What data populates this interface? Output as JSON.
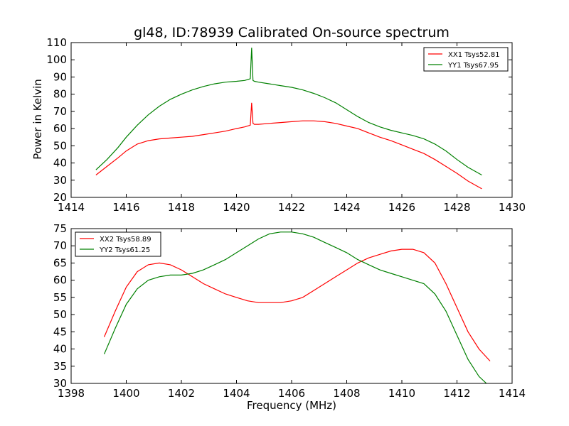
{
  "figure": {
    "title": "gl48, ID:78939 Calibrated On-source spectrum",
    "xlabel": "Frequency (MHz)",
    "ylabel": "Power in Kelvin"
  },
  "chart_data": [
    {
      "type": "line",
      "title": "gl48, ID:78939 Calibrated On-source spectrum",
      "xlabel": "",
      "ylabel": "Power in Kelvin",
      "xlim": [
        1414,
        1430
      ],
      "ylim": [
        20,
        110
      ],
      "xticks": [
        "1414",
        "1416",
        "1418",
        "1420",
        "1422",
        "1424",
        "1426",
        "1428",
        "1430"
      ],
      "yticks": [
        "20",
        "30",
        "40",
        "50",
        "60",
        "70",
        "80",
        "90",
        "100",
        "110"
      ],
      "legend": "top-right",
      "grid": false,
      "series": [
        {
          "name": "XX1 Tsys52.81",
          "color": "#ff0000",
          "x": [
            1414.9,
            1415.3,
            1415.7,
            1416.0,
            1416.4,
            1416.8,
            1417.2,
            1417.6,
            1418.0,
            1418.4,
            1418.8,
            1419.2,
            1419.6,
            1420.0,
            1420.3,
            1420.5,
            1420.55,
            1420.6,
            1420.65,
            1420.8,
            1421.2,
            1421.6,
            1422.0,
            1422.4,
            1422.8,
            1423.2,
            1423.6,
            1424.0,
            1424.4,
            1424.8,
            1425.2,
            1425.6,
            1426.0,
            1426.4,
            1426.8,
            1427.2,
            1427.6,
            1428.0,
            1428.4,
            1428.9
          ],
          "y": [
            33,
            38,
            43,
            47,
            51,
            53,
            54,
            54.5,
            55,
            55.5,
            56.5,
            57.5,
            58.5,
            60,
            61,
            62,
            75,
            63,
            62.5,
            62.5,
            63,
            63.5,
            64,
            64.5,
            64.5,
            64,
            63,
            61.5,
            60,
            57.5,
            55,
            53,
            50.5,
            48,
            45.5,
            42,
            38,
            34,
            29.5,
            25
          ]
        },
        {
          "name": "YY1 Tsys67.95",
          "color": "#008000",
          "x": [
            1414.9,
            1415.3,
            1415.7,
            1416.0,
            1416.4,
            1416.8,
            1417.2,
            1417.6,
            1418.0,
            1418.4,
            1418.8,
            1419.2,
            1419.6,
            1420.0,
            1420.3,
            1420.5,
            1420.55,
            1420.6,
            1420.65,
            1420.8,
            1421.2,
            1421.6,
            1422.0,
            1422.4,
            1422.8,
            1423.2,
            1423.6,
            1424.0,
            1424.4,
            1424.8,
            1425.2,
            1425.6,
            1426.0,
            1426.4,
            1426.8,
            1427.2,
            1427.6,
            1428.0,
            1428.4,
            1428.9
          ],
          "y": [
            36,
            42,
            49,
            55,
            62,
            68,
            73,
            77,
            80,
            82.5,
            84.5,
            86,
            87,
            87.5,
            88,
            89,
            107,
            88,
            87.5,
            87,
            86,
            85,
            84,
            82.5,
            80.5,
            78,
            75,
            71,
            67,
            63.5,
            61,
            59,
            57.5,
            56,
            54,
            51,
            47,
            42,
            37.5,
            33
          ]
        }
      ]
    },
    {
      "type": "line",
      "title": "",
      "xlabel": "Frequency (MHz)",
      "ylabel": "",
      "xlim": [
        1398,
        1414
      ],
      "ylim": [
        30,
        75
      ],
      "xticks": [
        "1398",
        "1400",
        "1402",
        "1404",
        "1406",
        "1408",
        "1410",
        "1412",
        "1414"
      ],
      "yticks": [
        "30",
        "35",
        "40",
        "45",
        "50",
        "55",
        "60",
        "65",
        "70",
        "75"
      ],
      "legend": "top-left",
      "grid": false,
      "series": [
        {
          "name": "XX2 Tsys58.89",
          "color": "#ff0000",
          "x": [
            1399.2,
            1399.6,
            1400.0,
            1400.4,
            1400.8,
            1401.2,
            1401.6,
            1402.0,
            1402.4,
            1402.8,
            1403.2,
            1403.6,
            1404.0,
            1404.4,
            1404.8,
            1405.2,
            1405.6,
            1406.0,
            1406.4,
            1406.8,
            1407.2,
            1407.6,
            1408.0,
            1408.4,
            1408.8,
            1409.2,
            1409.6,
            1410.0,
            1410.4,
            1410.8,
            1411.2,
            1411.6,
            1412.0,
            1412.4,
            1412.8,
            1413.2
          ],
          "y": [
            43.5,
            51,
            58,
            62.5,
            64.5,
            65,
            64.5,
            63,
            61,
            59,
            57.5,
            56,
            55,
            54,
            53.5,
            53.5,
            53.5,
            54,
            55,
            57,
            59,
            61,
            63,
            65,
            66.5,
            67.5,
            68.5,
            69,
            69,
            68,
            65,
            59,
            52,
            45,
            40,
            36.5
          ]
        },
        {
          "name": "YY2 Tsys61.25",
          "color": "#008000",
          "x": [
            1399.2,
            1399.6,
            1400.0,
            1400.4,
            1400.8,
            1401.2,
            1401.6,
            1402.0,
            1402.4,
            1402.8,
            1403.2,
            1403.6,
            1404.0,
            1404.4,
            1404.8,
            1405.2,
            1405.6,
            1406.0,
            1406.4,
            1406.8,
            1407.2,
            1407.6,
            1408.0,
            1408.4,
            1408.8,
            1409.2,
            1409.6,
            1410.0,
            1410.4,
            1410.8,
            1411.2,
            1411.6,
            1412.0,
            1412.4,
            1412.8,
            1413.2
          ],
          "y": [
            38.5,
            46,
            53,
            57.5,
            60,
            61,
            61.5,
            61.5,
            62,
            63,
            64.5,
            66,
            68,
            70,
            72,
            73.5,
            74,
            74,
            73.5,
            72.5,
            71,
            69.5,
            68,
            66,
            64.5,
            63,
            62,
            61,
            60,
            59,
            56,
            51,
            44,
            37,
            32,
            29
          ]
        }
      ]
    }
  ]
}
